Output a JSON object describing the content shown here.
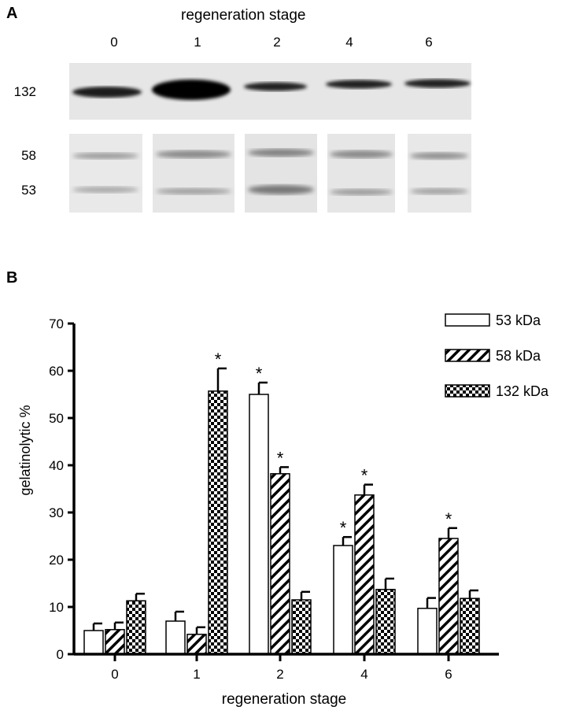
{
  "panel_a": {
    "letter": "A",
    "title": "regeneration stage",
    "lanes": [
      "0",
      "1",
      "2",
      "4",
      "6"
    ],
    "mw_labels": {
      "top": "132",
      "mid": "58",
      "low": "53"
    }
  },
  "panel_b": {
    "letter": "B"
  },
  "chart_data": {
    "type": "bar",
    "categories": [
      "0",
      "1",
      "2",
      "4",
      "6"
    ],
    "series": [
      {
        "name": "53 kDa",
        "pattern": "open",
        "values": [
          5.0,
          7.0,
          55.0,
          23.0,
          9.7
        ],
        "errors": [
          1.5,
          2.0,
          2.5,
          1.8,
          2.2
        ],
        "significant": [
          false,
          false,
          true,
          true,
          false
        ]
      },
      {
        "name": "58 kDa",
        "pattern": "hatched",
        "values": [
          5.2,
          4.2,
          38.2,
          33.7,
          24.5
        ],
        "errors": [
          1.5,
          1.5,
          1.4,
          2.2,
          2.2
        ],
        "significant": [
          false,
          false,
          true,
          true,
          true
        ]
      },
      {
        "name": "132 kDa",
        "pattern": "checkered",
        "values": [
          11.3,
          55.7,
          11.5,
          13.7,
          11.8
        ],
        "errors": [
          1.5,
          4.8,
          1.7,
          2.3,
          1.7
        ],
        "significant": [
          false,
          true,
          false,
          false,
          false
        ]
      }
    ],
    "xlabel": "regeneration stage",
    "ylabel": "gelatinolytic %",
    "ylim": [
      0,
      70
    ],
    "yticks": [
      "0",
      "10",
      "20",
      "30",
      "40",
      "50",
      "60",
      "70"
    ],
    "significance_marker": "*",
    "legend_position": "top-right",
    "grid": false,
    "colors": {
      "fill": "#ffffff",
      "stroke": "#000000"
    }
  }
}
